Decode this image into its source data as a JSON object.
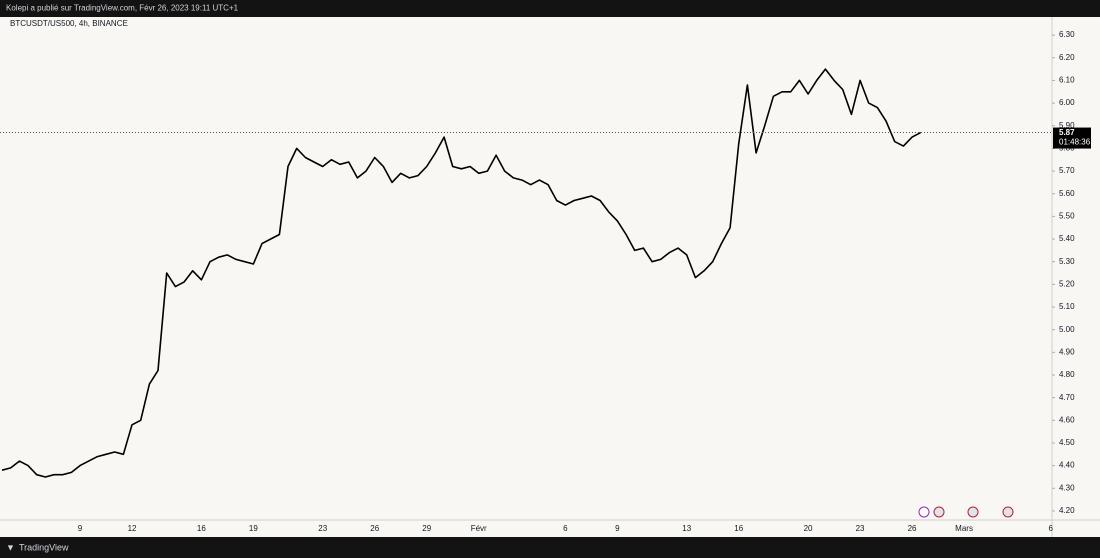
{
  "header": {
    "text": "Kolepi a publié sur TradingView.com, Févr 26, 2023 19:11 UTC+1"
  },
  "footer": {
    "brand": "TradingView"
  },
  "chart_data": {
    "type": "line",
    "title": "BTCUSDT/US500, 4h, BINANCE",
    "color": "#000000",
    "categories": [
      null,
      null,
      null,
      null,
      null,
      null,
      null,
      null,
      null,
      "9",
      null,
      null,
      null,
      null,
      null,
      "12",
      null,
      null,
      null,
      null,
      null,
      null,
      null,
      "16",
      null,
      null,
      null,
      null,
      null,
      "19",
      null,
      null,
      null,
      null,
      null,
      null,
      null,
      "23",
      null,
      null,
      null,
      null,
      null,
      "26",
      null,
      null,
      null,
      null,
      null,
      "29",
      null,
      null,
      null,
      null,
      null,
      "Févr",
      null,
      null,
      null,
      null,
      null,
      null,
      null,
      null,
      null,
      "6",
      null,
      null,
      null,
      null,
      null,
      "9",
      null,
      null,
      null,
      null,
      null,
      null,
      null,
      "13",
      null,
      null,
      null,
      null,
      null,
      "16",
      null,
      null,
      null,
      null,
      null,
      null,
      null,
      "20",
      null,
      null,
      null,
      null,
      null,
      "23",
      null,
      null,
      null,
      null,
      null,
      "26",
      null,
      null,
      null,
      null,
      null,
      "Mars",
      null,
      null,
      null,
      null,
      null,
      null,
      null,
      null,
      null,
      "6"
    ],
    "values": [
      4.38,
      4.39,
      4.42,
      4.4,
      4.36,
      4.35,
      4.36,
      4.36,
      4.37,
      4.4,
      4.42,
      4.44,
      4.45,
      4.46,
      4.45,
      4.58,
      4.6,
      4.76,
      4.82,
      5.25,
      5.19,
      5.21,
      5.26,
      5.22,
      5.3,
      5.32,
      5.33,
      5.31,
      5.3,
      5.29,
      5.38,
      5.4,
      5.42,
      5.72,
      5.8,
      5.76,
      5.74,
      5.72,
      5.75,
      5.73,
      5.74,
      5.67,
      5.7,
      5.76,
      5.72,
      5.65,
      5.69,
      5.67,
      5.68,
      5.72,
      5.78,
      5.85,
      5.72,
      5.71,
      5.72,
      5.69,
      5.7,
      5.77,
      5.7,
      5.67,
      5.66,
      5.64,
      5.66,
      5.64,
      5.57,
      5.55,
      5.57,
      5.58,
      5.59,
      5.57,
      5.52,
      5.48,
      5.42,
      5.35,
      5.36,
      5.3,
      5.31,
      5.34,
      5.36,
      5.33,
      5.23,
      5.26,
      5.3,
      5.38,
      5.45,
      5.82,
      6.08,
      5.78,
      5.9,
      6.03,
      6.05,
      6.05,
      6.1,
      6.04,
      6.1,
      6.15,
      6.1,
      6.06,
      5.95,
      6.1,
      6.0,
      5.98,
      5.92,
      5.83,
      5.81,
      5.85,
      5.87,
      null,
      null,
      null,
      null,
      null,
      null,
      null,
      null,
      null,
      null,
      null,
      null,
      null,
      null,
      null
    ],
    "ylim": [
      4.16,
      6.38
    ],
    "yticks": [
      {
        "value": 6.3,
        "label": "6.30"
      },
      {
        "value": 6.2,
        "label": "6.20"
      },
      {
        "value": 6.1,
        "label": "6.10"
      },
      {
        "value": 6.0,
        "label": "6.00"
      },
      {
        "value": 5.9,
        "label": "5.90"
      },
      {
        "value": 5.8,
        "label": "5.80"
      },
      {
        "value": 5.7,
        "label": "5.70"
      },
      {
        "value": 5.6,
        "label": "5.60"
      },
      {
        "value": 5.5,
        "label": "5.50"
      },
      {
        "value": 5.4,
        "label": "5.40"
      },
      {
        "value": 5.3,
        "label": "5.30"
      },
      {
        "value": 5.2,
        "label": "5.20"
      },
      {
        "value": 5.1,
        "label": "5.10"
      },
      {
        "value": 5.0,
        "label": "5.00"
      },
      {
        "value": 4.9,
        "label": "4.90"
      },
      {
        "value": 4.8,
        "label": "4.80"
      },
      {
        "value": 4.7,
        "label": "4.70"
      },
      {
        "value": 4.6,
        "label": "4.60"
      },
      {
        "value": 4.5,
        "label": "4.50"
      },
      {
        "value": 4.4,
        "label": "4.40"
      },
      {
        "value": 4.3,
        "label": "4.30"
      },
      {
        "value": 4.2,
        "label": "4.20"
      }
    ],
    "last_price": 5.87,
    "countdown": "01:48:36"
  }
}
